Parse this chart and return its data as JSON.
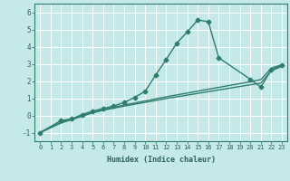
{
  "xlabel": "Humidex (Indice chaleur)",
  "xlim": [
    -0.5,
    23.5
  ],
  "ylim": [
    -1.5,
    6.5
  ],
  "xticks": [
    0,
    1,
    2,
    3,
    4,
    5,
    6,
    7,
    8,
    9,
    10,
    11,
    12,
    13,
    14,
    15,
    16,
    17,
    18,
    19,
    20,
    21,
    22,
    23
  ],
  "yticks": [
    -1,
    0,
    1,
    2,
    3,
    4,
    5,
    6
  ],
  "bg_color": "#c5e8e8",
  "grid_color": "#e0f0f0",
  "line_color": "#2e7d6e",
  "line1_x": [
    0,
    1,
    2,
    3,
    4,
    5,
    6,
    7,
    8,
    9,
    10,
    11,
    12,
    13,
    14,
    15,
    16,
    17,
    18,
    19,
    20,
    21,
    22,
    23
  ],
  "line1_y": [
    -1.0,
    -0.72,
    -0.44,
    -0.25,
    -0.05,
    0.15,
    0.3,
    0.42,
    0.54,
    0.65,
    0.76,
    0.87,
    0.98,
    1.08,
    1.18,
    1.28,
    1.38,
    1.48,
    1.58,
    1.68,
    1.78,
    1.88,
    2.6,
    2.85
  ],
  "line2_x": [
    0,
    1,
    2,
    3,
    4,
    5,
    6,
    7,
    8,
    9,
    10,
    11,
    12,
    13,
    14,
    15,
    16,
    17,
    18,
    19,
    20,
    21,
    22,
    23
  ],
  "line2_y": [
    -1.0,
    -0.7,
    -0.4,
    -0.22,
    -0.02,
    0.18,
    0.34,
    0.47,
    0.6,
    0.72,
    0.84,
    0.96,
    1.08,
    1.19,
    1.3,
    1.41,
    1.52,
    1.63,
    1.74,
    1.85,
    1.96,
    2.08,
    2.75,
    2.95
  ],
  "line3_x": [
    0,
    2,
    3,
    4,
    5,
    6,
    7,
    8,
    9,
    10,
    11,
    12,
    13,
    14,
    15,
    16,
    17,
    20,
    21,
    22,
    23
  ],
  "line3_y": [
    -1.0,
    -0.3,
    -0.2,
    0.05,
    0.25,
    0.4,
    0.55,
    0.75,
    1.05,
    1.4,
    2.35,
    3.25,
    4.2,
    4.85,
    5.55,
    5.45,
    3.35,
    2.1,
    1.65,
    2.65,
    2.9
  ],
  "marker": "D",
  "markersize": 2.5,
  "linewidth": 1.0,
  "tick_fontsize_x": 5.0,
  "tick_fontsize_y": 5.5,
  "xlabel_fontsize": 6.0
}
